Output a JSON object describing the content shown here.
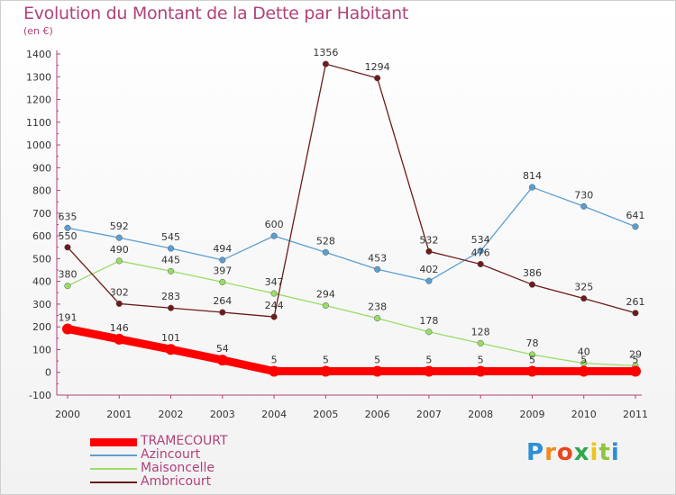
{
  "header": {
    "title": "Evolution du Montant de la Dette par Habitant",
    "unit": "(en €)"
  },
  "brand": {
    "logo_text": "Proxiti"
  },
  "chart_data": {
    "type": "line",
    "title": "Evolution du Montant de la Dette par Habitant",
    "subtitle": "(en €)",
    "x": [
      "2000",
      "2001",
      "2002",
      "2003",
      "2004",
      "2005",
      "2006",
      "2007",
      "2008",
      "2009",
      "2010",
      "2011"
    ],
    "ylim": [
      -100,
      1400
    ],
    "yticks": [
      -100,
      0,
      100,
      200,
      300,
      400,
      500,
      600,
      700,
      800,
      900,
      1000,
      1100,
      1200,
      1300,
      1400
    ],
    "grid": false,
    "legend": "bottom-left",
    "series": [
      {
        "name": "TRAMECOURT",
        "color": "#ff0000",
        "values": [
          191,
          146,
          101,
          54,
          5,
          5,
          5,
          5,
          5,
          5,
          5,
          5
        ]
      },
      {
        "name": "Azincourt",
        "color": "#5a9fd4",
        "values": [
          635,
          592,
          545,
          494,
          600,
          528,
          453,
          402,
          534,
          814,
          730,
          641
        ]
      },
      {
        "name": "Maisoncelle",
        "color": "#99dd66",
        "values": [
          380,
          490,
          445,
          397,
          347,
          294,
          238,
          178,
          128,
          78,
          40,
          29
        ]
      },
      {
        "name": "Ambricourt",
        "color": "#6e1b1b",
        "values": [
          550,
          302,
          283,
          264,
          244,
          1356,
          1294,
          532,
          476,
          386,
          325,
          261
        ]
      }
    ]
  }
}
